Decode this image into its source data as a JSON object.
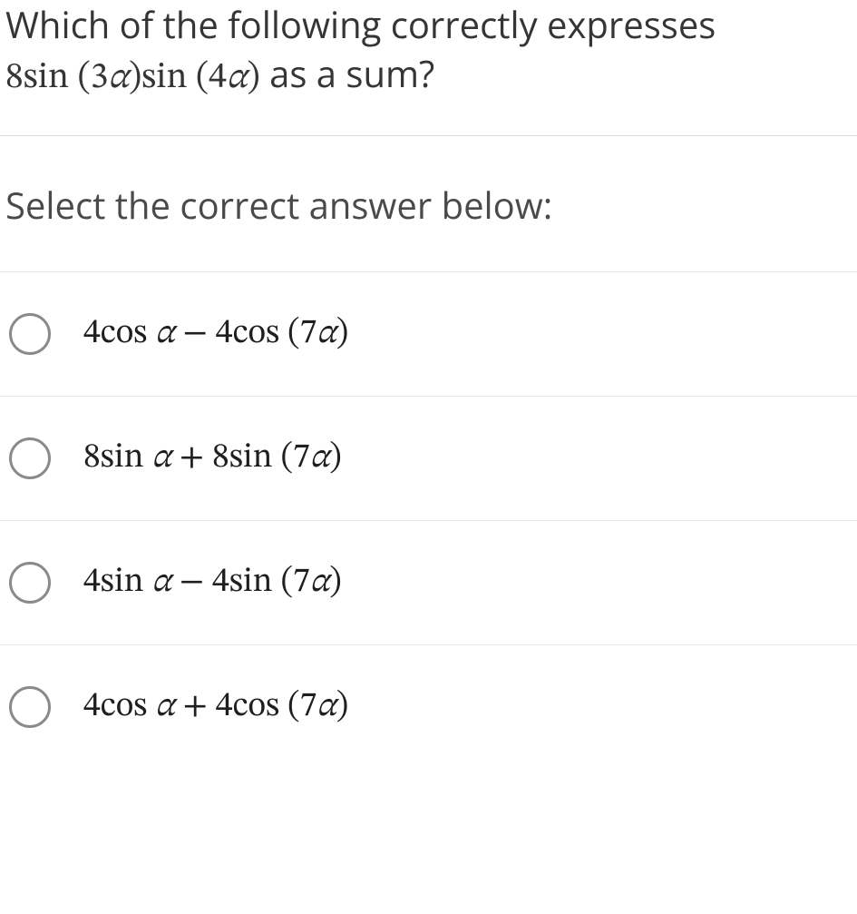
{
  "question": {
    "line1": "Which of the following correctly expresses",
    "expression": "8sin (3α)sin (4α)",
    "line2_tail": " as a sum?"
  },
  "prompt": "Select the correct answer below:",
  "choices": [
    {
      "text": "4cos α − 4cos (7α)"
    },
    {
      "text": "8sin α + 8sin (7α)"
    },
    {
      "text": "4sin α − 4sin (7α)"
    },
    {
      "text": "4cos α + 4cos (7α)"
    }
  ],
  "colors": {
    "text": "#333333",
    "divider": "#e6e6e6",
    "radio_border": "#8a8a8a",
    "background": "#ffffff"
  },
  "fonts": {
    "body_size_pt": 30,
    "math_family": "Cambria Math / STIX / Times"
  }
}
